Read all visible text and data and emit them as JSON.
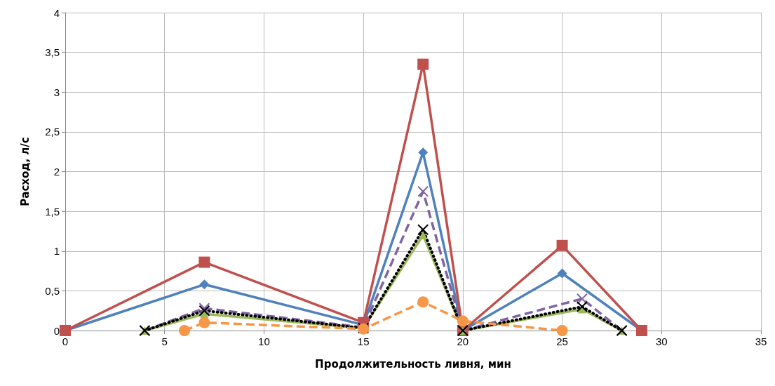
{
  "chart_data": {
    "type": "line",
    "xlabel": "Продолжительность ливня, мин",
    "ylabel": "Расход, л/с",
    "xlim": [
      0,
      35
    ],
    "xticks": [
      0,
      5,
      10,
      15,
      20,
      25,
      30,
      35
    ],
    "ylim": [
      0,
      4
    ],
    "yticks": [
      0,
      {
        "value": 0.5,
        "label": "0,5"
      },
      1,
      {
        "value": 1.5,
        "label": "1,5"
      },
      2,
      {
        "value": 2.5,
        "label": "2,5"
      },
      3,
      {
        "value": 3.5,
        "label": "3,5"
      },
      4
    ],
    "grid": true,
    "series": [
      {
        "color": "#4f81bd",
        "marker": "diamond",
        "line_style": "solid",
        "x": [
          0,
          7,
          15,
          18,
          20,
          25,
          29
        ],
        "values": [
          0,
          0.58,
          0.07,
          2.24,
          0,
          0.72,
          0
        ]
      },
      {
        "color": "#c0504d",
        "marker": "square",
        "line_style": "solid",
        "x": [
          0,
          7,
          15,
          18,
          20,
          25,
          29
        ],
        "values": [
          0,
          0.86,
          0.1,
          3.35,
          0,
          1.07,
          0
        ]
      },
      {
        "color": "#9bbb59",
        "marker": "triangle",
        "line_style": "solid",
        "x": [
          4,
          7,
          15,
          18,
          20,
          26,
          28
        ],
        "values": [
          0,
          0.21,
          0.03,
          1.2,
          0,
          0.27,
          0
        ]
      },
      {
        "color": "#8064a2",
        "marker": "cross",
        "line_style": "dashed",
        "x": [
          4,
          7,
          15,
          18,
          20,
          26,
          28
        ],
        "values": [
          0,
          0.28,
          0.04,
          1.75,
          0,
          0.4,
          0
        ]
      },
      {
        "color": "#000000",
        "marker": "cross",
        "line_style": "dotted",
        "x": [
          4,
          7,
          15,
          18,
          20,
          26,
          28
        ],
        "values": [
          0,
          0.25,
          0.03,
          1.27,
          0,
          0.3,
          0
        ]
      },
      {
        "color": "#f79646",
        "marker": "circle",
        "line_style": "dashed",
        "x": [
          6,
          7,
          15,
          18,
          20,
          25
        ],
        "values": [
          0,
          0.1,
          0.02,
          0.36,
          0.12,
          0
        ]
      }
    ]
  }
}
